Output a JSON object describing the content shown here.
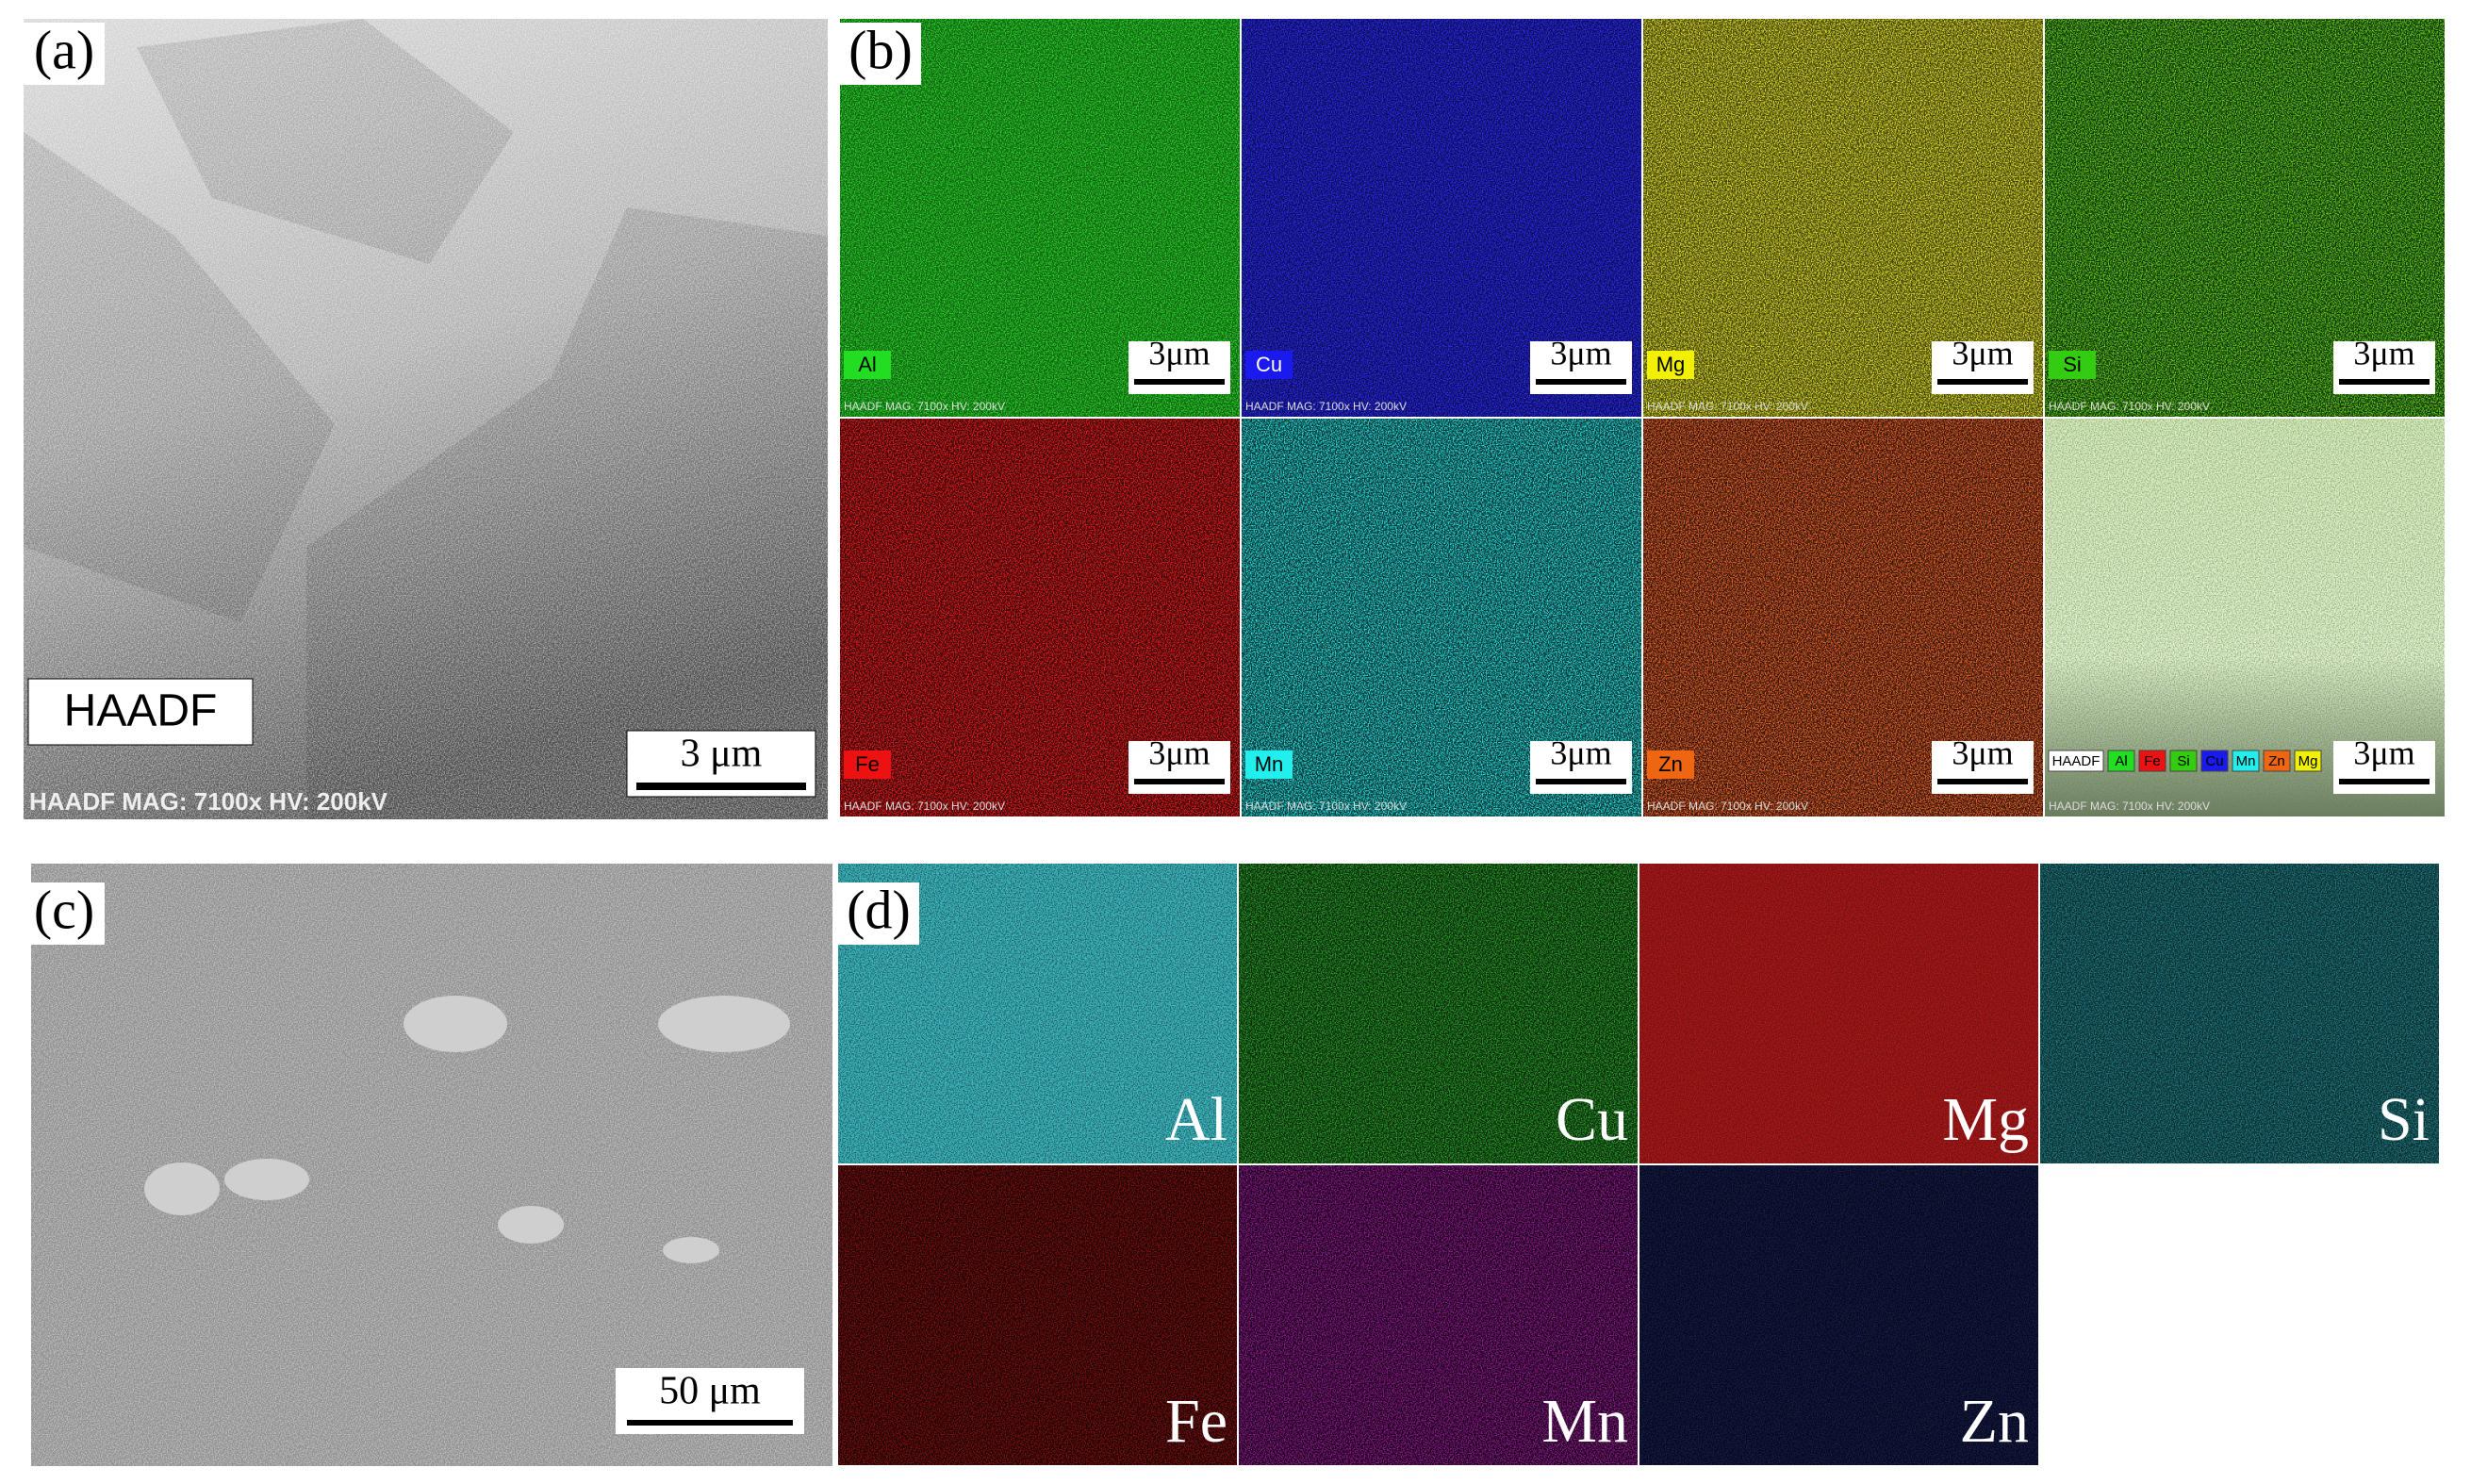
{
  "panel_a": {
    "label": "(a)",
    "overlay": "HAADF",
    "scale_bar": "3 μm",
    "footer": "HAADF  MAG: 7100x  HV: 200kV"
  },
  "panel_b": {
    "label": "(b)",
    "maps": [
      {
        "element": "Al",
        "scale_bar": "3μm",
        "footer": "HAADF  MAG: 7100x  HV: 200kV"
      },
      {
        "element": "Cu",
        "scale_bar": "3μm",
        "footer": "HAADF  MAG: 7100x  HV: 200kV"
      },
      {
        "element": "Mg",
        "scale_bar": "3μm",
        "footer": "HAADF  MAG: 7100x  HV: 200kV"
      },
      {
        "element": "Si",
        "scale_bar": "3μm",
        "footer": "HAADF  MAG: 7100x  HV: 200kV"
      },
      {
        "element": "Fe",
        "scale_bar": "3μm",
        "footer": "HAADF  MAG: 7100x  HV: 200kV"
      },
      {
        "element": "Mn",
        "scale_bar": "3μm",
        "footer": "HAADF  MAG: 7100x  HV: 200kV"
      },
      {
        "element": "Zn",
        "scale_bar": "3μm",
        "footer": "HAADF  MAG: 7100x  HV: 200kV"
      }
    ],
    "overlay": {
      "legend": [
        "HAADF",
        "Al",
        "Fe",
        "Si",
        "Cu",
        "Mn",
        "Zn",
        "Mg"
      ],
      "scale_bar": "3μm",
      "footer": "HAADF  MAG: 7100x  HV: 200kV"
    }
  },
  "panel_c": {
    "label": "(c)",
    "scale_bar": "50 μm"
  },
  "panel_d": {
    "label": "(d)",
    "maps": [
      "Al",
      "Cu",
      "Mg",
      "Si",
      "Fe",
      "Mn",
      "Zn"
    ]
  }
}
